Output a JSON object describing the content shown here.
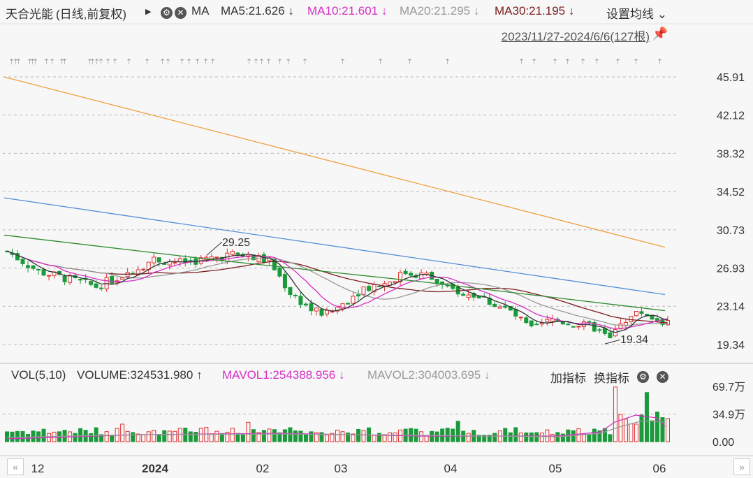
{
  "header": {
    "stock_name": "天合光能",
    "mode": "(日线,前复权)",
    "play_icon": "play-icon",
    "ma_label": "MA",
    "ma5": "MA5:21.626",
    "ma10": "MA10:21.601",
    "ma20": "MA20:21.295",
    "ma30": "MA30:21.195",
    "settings": "设置均线",
    "date_range": "2023/11/27-2024/6/6(127根)",
    "colors": {
      "ma5": "#333333",
      "ma10": "#d62fc4",
      "ma20": "#999999",
      "ma30": "#7b1c1c"
    }
  },
  "volume_header": {
    "label": "VOL(5,10)",
    "volume": "VOLUME:324531.980",
    "mavol1": "MAVOL1:254388.956",
    "mavol2": "MAVOL2:304003.695",
    "add_indicator": "加指标",
    "switch_indicator": "换指标"
  },
  "chart_data": {
    "type": "candlestick",
    "price_axis": {
      "ticks": [
        "45.91",
        "42.12",
        "38.32",
        "34.52",
        "30.73",
        "26.93",
        "23.14",
        "19.34"
      ]
    },
    "volume_axis": {
      "ticks": [
        "69.7万",
        "34.9万",
        "0.00"
      ]
    },
    "x_ticks": [
      "12",
      "2024",
      "02",
      "03",
      "04",
      "05",
      "06"
    ],
    "annotations": {
      "high": "29.25",
      "low": "19.34"
    },
    "colors": {
      "up": "#e03030",
      "down": "#1a9a3a"
    }
  }
}
